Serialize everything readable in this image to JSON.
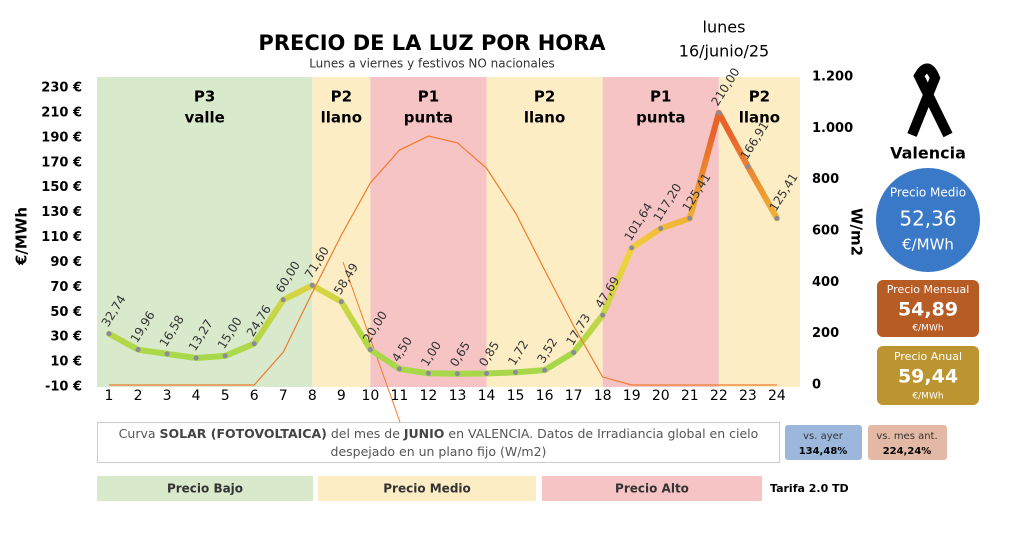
{
  "chart_data": {
    "type": "line",
    "title": "PRECIO DE LA LUZ POR HORA",
    "subtitle": "Lunes a viernes y festivos NO nacionales",
    "y_label": "€/MWh",
    "y2_label": "W/m2",
    "categories": [
      "1",
      "2",
      "3",
      "4",
      "5",
      "6",
      "7",
      "8",
      "9",
      "10",
      "11",
      "12",
      "13",
      "14",
      "15",
      "16",
      "17",
      "18",
      "19",
      "20",
      "21",
      "22",
      "23",
      "24"
    ],
    "series": [
      {
        "colors": [
          "#a8d84a",
          "#f2d23c",
          "#e8632a"
        ],
        "values": [
          32.74,
          19.96,
          16.58,
          13.27,
          15.0,
          24.76,
          60.0,
          71.6,
          58.49,
          20.0,
          4.5,
          1.0,
          0.65,
          0.85,
          1.72,
          3.52,
          17.73,
          47.69,
          101.64,
          117.2,
          125.41,
          210.0,
          166.91,
          125.41
        ],
        "value_labels": [
          "32,74",
          "19,96",
          "16,58",
          "13,27",
          "15,00",
          "24,76",
          "60,00",
          "71,60",
          "58,49",
          "20,00",
          "4,50",
          "1,00",
          "0,65",
          "0,85",
          "1,72",
          "3,52",
          "17,73",
          "47,69",
          "101,64",
          "117,20",
          "125,41",
          "210,00",
          "166,91",
          "125,41"
        ]
      },
      {
        "axis": "y2",
        "color": "#f07c2c",
        "values": [
          0,
          0,
          0,
          0,
          0,
          0,
          128,
          360,
          584,
          787,
          915,
          970,
          943,
          845,
          670,
          448,
          230,
          31,
          0,
          0,
          0,
          0,
          0,
          0
        ]
      }
    ],
    "ylim": [
      -10,
      230
    ],
    "yticks": [
      {
        "value": -10,
        "label": "-10 €"
      },
      {
        "value": 10,
        "label": "10 €"
      },
      {
        "value": 30,
        "label": "30 €"
      },
      {
        "value": 50,
        "label": "50 €"
      },
      {
        "value": 70,
        "label": "70 €"
      },
      {
        "value": 90,
        "label": "90 €"
      },
      {
        "value": 110,
        "label": "110 €"
      },
      {
        "value": 130,
        "label": "130 €"
      },
      {
        "value": 150,
        "label": "150 €"
      },
      {
        "value": 170,
        "label": "170 €"
      },
      {
        "value": 190,
        "label": "190 €"
      },
      {
        "value": 210,
        "label": "210 €"
      },
      {
        "value": 230,
        "label": "230 €"
      }
    ],
    "y2lim": [
      0,
      1200
    ],
    "y2ticks": [
      0,
      200,
      400,
      600,
      800,
      {
        "value": 1000,
        "label": "1.000"
      },
      {
        "value": 1200,
        "label": "1.200"
      }
    ],
    "periods": [
      {
        "name": "P3",
        "label": "valle",
        "from": 0,
        "to": 8,
        "color": "#d8e9cc"
      },
      {
        "name": "P2",
        "label": "llano",
        "from": 8,
        "to": 10,
        "color": "#fcedc4"
      },
      {
        "name": "P1",
        "label": "punta",
        "from": 10,
        "to": 14,
        "color": "#f6c4c4"
      },
      {
        "name": "P2",
        "label": "llano",
        "from": 14,
        "to": 18,
        "color": "#fcedc4"
      },
      {
        "name": "P1",
        "label": "punta",
        "from": 18,
        "to": 22,
        "color": "#f6c4c4"
      },
      {
        "name": "P2",
        "label": "llano",
        "from": 22,
        "to": 24,
        "color": "#fcedc4"
      }
    ]
  },
  "day": "lunes",
  "date": "16/junio/25",
  "city": "Valencia",
  "stats": {
    "medio": {
      "label": "Precio Medio",
      "value": "52,36",
      "unit": "€/MWh"
    },
    "mensual": {
      "label": "Precio Mensual",
      "value": "54,89",
      "unit": "€/MWh"
    },
    "anual": {
      "label": "Precio Anual",
      "value": "59,44",
      "unit": "€/MWh"
    },
    "ayer": {
      "label": "vs. ayer",
      "value": "134,48%"
    },
    "mes": {
      "label": "vs. mes ant.",
      "value": "224,24%"
    }
  },
  "note": [
    "Curva ",
    "SOLAR (FOTOVOLTAICA)",
    " del mes de ",
    "JUNIO",
    " en VALENCIA. Datos de Irradiancia global en cielo despejado en un plano fijo (W/m2)"
  ],
  "legend": [
    "Precio Bajo",
    "Precio Medio",
    "Precio Alto"
  ],
  "tariff": "Tarifa 2.0 TD"
}
